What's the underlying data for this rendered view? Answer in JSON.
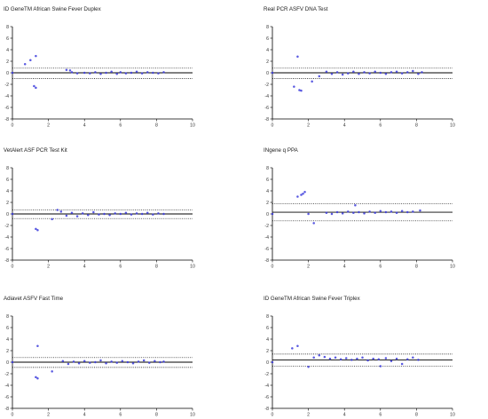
{
  "figure": {
    "panels_order": [
      "ID GeneTM African Swine Fever Duplex",
      "Real PCR ASFV DNA Test",
      "VetAlert ASF PCR Test Kit",
      "INgene q PPA",
      "Adiavet ASFV Fast Time",
      "ID GeneTM African Swine Fever Triplex"
    ]
  },
  "chart_data": [
    {
      "type": "scatter",
      "title": "ID GeneTM African Swine Fever Duplex",
      "xlabel": "",
      "ylabel": "",
      "xlim": [
        0,
        10
      ],
      "ylim": [
        -8,
        8
      ],
      "xticks": [
        "0",
        "2",
        "4",
        "6",
        "8",
        "10"
      ],
      "yticks": [
        "8",
        "6",
        "4",
        "2",
        "0",
        "-2",
        "-4",
        "-6",
        "-8"
      ],
      "mean_line": 0.0,
      "upper_loa": 0.8,
      "lower_loa": -1.0,
      "marker_color": "#3b3bdc",
      "points": [
        [
          0,
          0
        ],
        [
          0.7,
          1.5
        ],
        [
          1.0,
          2.2
        ],
        [
          1.3,
          2.9
        ],
        [
          1.2,
          -2.3
        ],
        [
          1.3,
          -2.6
        ],
        [
          3.0,
          0.5
        ],
        [
          3.2,
          0.4
        ],
        [
          3.3,
          0.1
        ],
        [
          3.6,
          -0.1
        ],
        [
          4.0,
          0.0
        ],
        [
          4.3,
          -0.1
        ],
        [
          4.6,
          0.1
        ],
        [
          4.9,
          -0.2
        ],
        [
          5.2,
          0.0
        ],
        [
          5.5,
          0.2
        ],
        [
          5.8,
          -0.2
        ],
        [
          6.0,
          0.1
        ],
        [
          6.3,
          -0.1
        ],
        [
          6.6,
          0.0
        ],
        [
          6.9,
          0.2
        ],
        [
          7.2,
          -0.1
        ],
        [
          7.5,
          0.1
        ],
        [
          7.8,
          0.0
        ],
        [
          8.1,
          -0.1
        ],
        [
          8.4,
          0.1
        ]
      ]
    },
    {
      "type": "scatter",
      "title": "Real PCR ASFV DNA Test",
      "xlabel": "",
      "ylabel": "",
      "xlim": [
        0,
        10
      ],
      "ylim": [
        -8,
        8
      ],
      "xticks": [
        "0",
        "2",
        "4",
        "6",
        "8",
        "10"
      ],
      "yticks": [
        "8",
        "6",
        "4",
        "2",
        "0",
        "-2",
        "-4",
        "-6",
        "-8"
      ],
      "mean_line": 0.0,
      "upper_loa": 0.8,
      "lower_loa": -1.0,
      "marker_color": "#3b3bdc",
      "points": [
        [
          0,
          0
        ],
        [
          1.4,
          2.8
        ],
        [
          1.2,
          -2.4
        ],
        [
          1.5,
          -3.0
        ],
        [
          1.6,
          -3.1
        ],
        [
          2.2,
          -1.5
        ],
        [
          2.6,
          -0.6
        ],
        [
          3.0,
          0.2
        ],
        [
          3.3,
          -0.2
        ],
        [
          3.6,
          0.1
        ],
        [
          3.9,
          -0.3
        ],
        [
          4.2,
          -0.1
        ],
        [
          4.5,
          0.2
        ],
        [
          4.8,
          -0.2
        ],
        [
          5.1,
          0.1
        ],
        [
          5.4,
          -0.1
        ],
        [
          5.7,
          0.2
        ],
        [
          6.0,
          0.0
        ],
        [
          6.3,
          -0.2
        ],
        [
          6.6,
          0.1
        ],
        [
          6.9,
          0.2
        ],
        [
          7.2,
          -0.1
        ],
        [
          7.5,
          0.1
        ],
        [
          7.8,
          0.3
        ],
        [
          8.1,
          -0.2
        ],
        [
          8.3,
          0.1
        ]
      ]
    },
    {
      "type": "scatter",
      "title": "VetAlert ASF PCR Test Kit",
      "xlabel": "",
      "ylabel": "",
      "xlim": [
        0,
        10
      ],
      "ylim": [
        -8,
        8
      ],
      "xticks": [
        "0",
        "2",
        "4",
        "6",
        "8",
        "10"
      ],
      "yticks": [
        "8",
        "6",
        "4",
        "2",
        "0",
        "-2",
        "-4",
        "-6",
        "-8"
      ],
      "mean_line": 0.0,
      "upper_loa": 0.7,
      "lower_loa": -0.8,
      "marker_color": "#3b3bdc",
      "points": [
        [
          0,
          0
        ],
        [
          1.3,
          -2.6
        ],
        [
          1.4,
          -2.8
        ],
        [
          2.2,
          -0.9
        ],
        [
          2.5,
          0.7
        ],
        [
          2.7,
          0.4
        ],
        [
          3.0,
          -0.3
        ],
        [
          3.3,
          0.2
        ],
        [
          3.6,
          -0.4
        ],
        [
          3.9,
          0.1
        ],
        [
          4.2,
          -0.2
        ],
        [
          4.5,
          0.3
        ],
        [
          4.8,
          -0.1
        ],
        [
          5.1,
          0.0
        ],
        [
          5.4,
          -0.2
        ],
        [
          5.7,
          0.1
        ],
        [
          6.0,
          0.0
        ],
        [
          6.3,
          0.2
        ],
        [
          6.6,
          -0.1
        ],
        [
          6.9,
          0.1
        ],
        [
          7.2,
          0.0
        ],
        [
          7.5,
          0.2
        ],
        [
          7.8,
          -0.1
        ],
        [
          8.1,
          0.1
        ],
        [
          8.4,
          0.0
        ]
      ]
    },
    {
      "type": "scatter",
      "title": "INgene q PPA",
      "xlabel": "",
      "ylabel": "",
      "xlim": [
        0,
        10
      ],
      "ylim": [
        -8,
        8
      ],
      "xticks": [
        "0",
        "2",
        "4",
        "6",
        "8",
        "10"
      ],
      "yticks": [
        "8",
        "6",
        "4",
        "2",
        "0",
        "-2",
        "-4",
        "-6",
        "-8"
      ],
      "mean_line": 0.3,
      "upper_loa": 1.8,
      "lower_loa": -1.2,
      "marker_color": "#3b3bdc",
      "points": [
        [
          0,
          0
        ],
        [
          1.4,
          3.0
        ],
        [
          1.6,
          3.3
        ],
        [
          1.7,
          3.5
        ],
        [
          1.8,
          3.8
        ],
        [
          2.0,
          0.0
        ],
        [
          2.3,
          -1.6
        ],
        [
          3.0,
          0.2
        ],
        [
          3.3,
          0.0
        ],
        [
          3.6,
          0.3
        ],
        [
          3.9,
          0.1
        ],
        [
          4.2,
          0.4
        ],
        [
          4.5,
          0.2
        ],
        [
          4.6,
          1.5
        ],
        [
          4.8,
          0.3
        ],
        [
          5.1,
          0.1
        ],
        [
          5.4,
          0.4
        ],
        [
          5.7,
          0.2
        ],
        [
          6.0,
          0.5
        ],
        [
          6.3,
          0.3
        ],
        [
          6.6,
          0.4
        ],
        [
          6.9,
          0.2
        ],
        [
          7.2,
          0.5
        ],
        [
          7.5,
          0.3
        ],
        [
          7.8,
          0.4
        ],
        [
          8.2,
          0.6
        ]
      ]
    },
    {
      "type": "scatter",
      "title": "Adiavet ASFV Fast Time",
      "xlabel": "",
      "ylabel": "",
      "xlim": [
        0,
        10
      ],
      "ylim": [
        -8,
        8
      ],
      "xticks": [
        "0",
        "2",
        "4",
        "6",
        "8",
        "10"
      ],
      "yticks": [
        "8",
        "6",
        "4",
        "2",
        "0",
        "-2",
        "-4",
        "-6",
        "-8"
      ],
      "mean_line": 0.0,
      "upper_loa": 0.8,
      "lower_loa": -0.9,
      "marker_color": "#3b3bdc",
      "points": [
        [
          0,
          0
        ],
        [
          1.4,
          2.8
        ],
        [
          1.3,
          -2.6
        ],
        [
          1.4,
          -2.8
        ],
        [
          2.2,
          -1.6
        ],
        [
          2.8,
          0.2
        ],
        [
          3.1,
          -0.3
        ],
        [
          3.4,
          0.1
        ],
        [
          3.7,
          -0.2
        ],
        [
          4.0,
          0.2
        ],
        [
          4.3,
          -0.1
        ],
        [
          4.6,
          0.0
        ],
        [
          4.9,
          0.3
        ],
        [
          5.2,
          -0.2
        ],
        [
          5.5,
          0.1
        ],
        [
          5.8,
          -0.1
        ],
        [
          6.1,
          0.2
        ],
        [
          6.4,
          0.0
        ],
        [
          6.7,
          -0.2
        ],
        [
          7.0,
          0.1
        ],
        [
          7.3,
          0.3
        ],
        [
          7.6,
          -0.1
        ],
        [
          7.9,
          0.2
        ],
        [
          8.2,
          0.0
        ],
        [
          8.4,
          0.1
        ]
      ]
    },
    {
      "type": "scatter",
      "title": "ID GeneTM African Swine Fever Triplex",
      "xlabel": "",
      "ylabel": "",
      "xlim": [
        0,
        10
      ],
      "ylim": [
        -8,
        8
      ],
      "xticks": [
        "0",
        "2",
        "4",
        "6",
        "8",
        "10"
      ],
      "yticks": [
        "8",
        "6",
        "4",
        "2",
        "0",
        "-2",
        "-4",
        "-6",
        "-8"
      ],
      "mean_line": 0.4,
      "upper_loa": 1.4,
      "lower_loa": -0.7,
      "marker_color": "#3b3bdc",
      "points": [
        [
          0,
          0
        ],
        [
          1.1,
          2.4
        ],
        [
          1.4,
          2.8
        ],
        [
          2.0,
          -0.8
        ],
        [
          2.3,
          0.8
        ],
        [
          2.6,
          1.2
        ],
        [
          2.9,
          0.9
        ],
        [
          3.2,
          0.6
        ],
        [
          3.5,
          0.8
        ],
        [
          3.8,
          0.5
        ],
        [
          4.1,
          0.7
        ],
        [
          4.4,
          0.4
        ],
        [
          4.7,
          0.6
        ],
        [
          5.0,
          0.8
        ],
        [
          5.3,
          0.3
        ],
        [
          5.6,
          0.6
        ],
        [
          5.9,
          0.5
        ],
        [
          6.0,
          -0.7
        ],
        [
          6.3,
          0.7
        ],
        [
          6.6,
          0.2
        ],
        [
          6.9,
          0.6
        ],
        [
          7.2,
          -0.3
        ],
        [
          7.5,
          0.5
        ],
        [
          7.8,
          0.8
        ],
        [
          8.1,
          0.4
        ]
      ]
    }
  ]
}
